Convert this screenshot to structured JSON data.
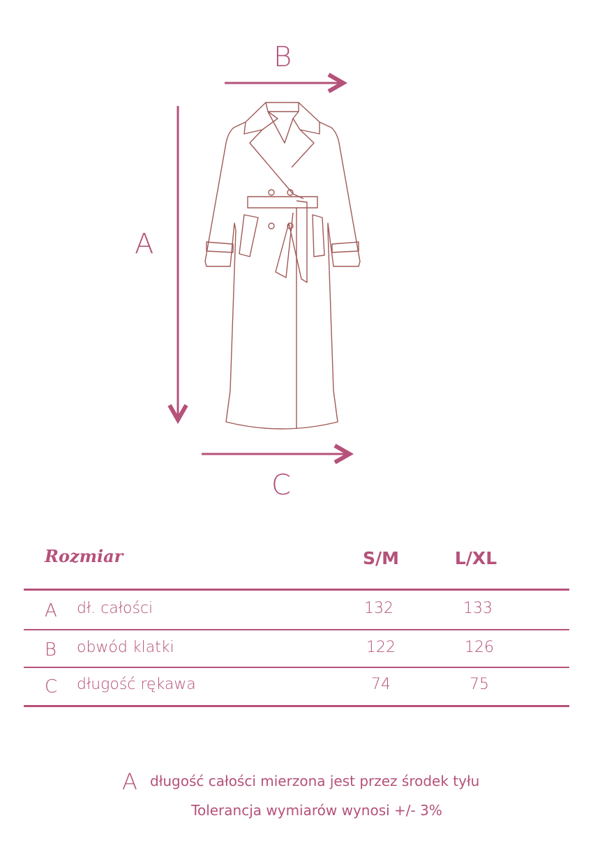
{
  "diagram": {
    "label_a": "A",
    "label_b": "B",
    "label_c": "C"
  },
  "table": {
    "title": "Rozmiar",
    "columns": [
      "S/M",
      "L/XL"
    ],
    "rows": [
      {
        "letter": "A",
        "label": "dł. całości",
        "values": [
          "132",
          "133"
        ]
      },
      {
        "letter": "B",
        "label": "obwód klatki",
        "values": [
          "122",
          "126"
        ]
      },
      {
        "letter": "C",
        "label": "długość rękawa",
        "values": [
          "74",
          "75"
        ]
      }
    ]
  },
  "footer": {
    "letter": "A",
    "note": "długość całości mierzona jest przez środek tyłu",
    "tolerance": "Tolerancja wymiarów wynosi +/- 3%"
  },
  "colors": {
    "accent": "#b5517a",
    "sketch": "#a05a58"
  }
}
